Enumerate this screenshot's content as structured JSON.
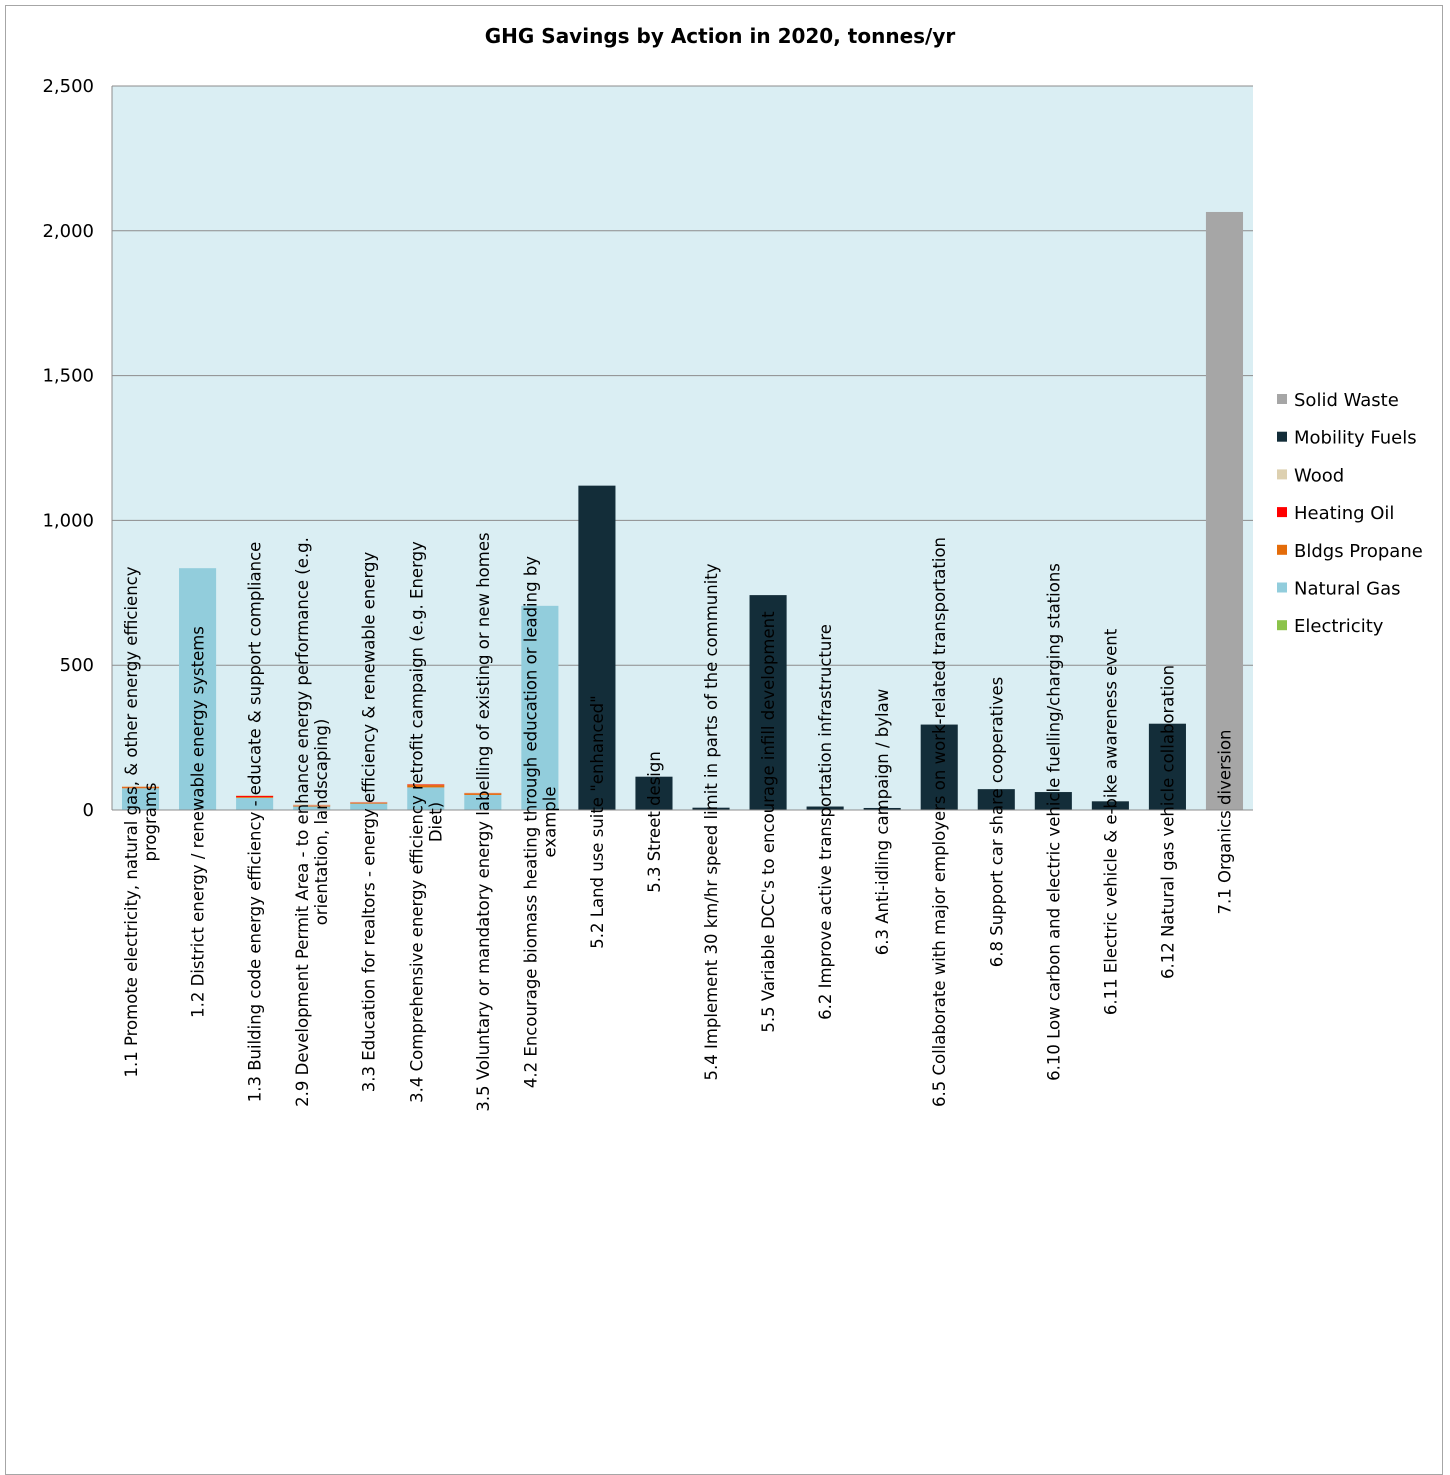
{
  "chart_data": {
    "type": "bar",
    "stacked": true,
    "title": "GHG Savings by Action in 2020, tonnes/yr",
    "xlabel": "",
    "ylabel": "",
    "ylim": [
      0,
      2500
    ],
    "yticks": [
      0,
      500,
      1000,
      1500,
      2000,
      2500
    ],
    "ytick_labels": [
      "0",
      "500",
      "1,000",
      "1,500",
      "2,000",
      "2,500"
    ],
    "grid": true,
    "legend_position": "right",
    "plot_background": "#daeef3",
    "categories": [
      "1.1 Promote electricity, natural gas, & other energy efficiency programs",
      "1.2 District energy / renewable energy systems",
      "1.3 Building code energy efficiency - educate & support compliance",
      "2.9 Development Permit Area - to enhance energy performance (e.g. orientation, landscaping)",
      "3.3 Education for realtors - energy efficiency & renewable energy",
      "3.4 Comprehensive energy efficiency retrofit campaign (e.g. Energy Diet)",
      "3.5 Voluntary or mandatory energy labelling of existing or new homes",
      "4.2 Encourage biomass heating through education or leading by example",
      "5.2 Land use suite \"enhanced\"",
      "5.3 Street design",
      "5.4 Implement 30 km/hr speed limit in parts of the community",
      "5.5 Variable DCC's to encourage infill development",
      "6.2 Improve active transportation infrastructure",
      "6.3 Anti-idling campaign / bylaw",
      "6.5 Collaborate with major employers on work-related transportation",
      "6.8 Support car share cooperatives",
      "6.10 Low carbon and electric vehicle fuelling/charging stations",
      "6.11 Electric vehicle & e-bike awareness event",
      "6.12 Natural gas vehicle collaboration",
      "7.1 Organics diversion"
    ],
    "category_lines": [
      [
        "1.1 Promote electricity, natural gas, & other energy efficiency",
        "programs"
      ],
      [
        "1.2 District energy / renewable energy systems"
      ],
      [
        "1.3 Building code energy efficiency - educate & support compliance"
      ],
      [
        "2.9 Development Permit Area - to enhance energy performance (e.g.",
        "orientation, landscaping)"
      ],
      [
        "3.3 Education for realtors - energy efficiency & renewable energy"
      ],
      [
        "3.4 Comprehensive energy efficiency retrofit campaign (e.g. Energy",
        "Diet)"
      ],
      [
        "3.5 Voluntary or mandatory energy labelling of existing or new homes"
      ],
      [
        "4.2 Encourage biomass heating through education or leading by",
        "example"
      ],
      [
        "5.2 Land use suite \"enhanced\""
      ],
      [
        "5.3 Street design"
      ],
      [
        "5.4 Implement 30 km/hr speed limit in parts of the community"
      ],
      [
        "5.5 Variable DCC's to encourage infill development"
      ],
      [
        "6.2 Improve active transportation infrastructure"
      ],
      [
        "6.3 Anti-idling campaign / bylaw"
      ],
      [
        "6.5 Collaborate with major employers on work-related transportation"
      ],
      [
        "6.8 Support car share cooperatives"
      ],
      [
        "6.10 Low carbon and electric vehicle fuelling/charging stations"
      ],
      [
        "6.11 Electric vehicle & e-bike awareness event"
      ],
      [
        "6.12 Natural gas vehicle collaboration"
      ],
      [
        "7.1 Organics diversion"
      ]
    ],
    "series": [
      {
        "name": "Electricity",
        "color": "#8bc34a",
        "values": [
          0,
          0,
          0,
          0,
          0,
          0,
          0,
          0,
          0,
          0,
          0,
          0,
          0,
          0,
          0,
          0,
          0,
          0,
          0,
          0
        ]
      },
      {
        "name": "Natural Gas",
        "color": "#92cddc",
        "values": [
          75,
          835,
          42,
          12,
          22,
          78,
          52,
          705,
          0,
          0,
          0,
          0,
          0,
          0,
          0,
          0,
          0,
          0,
          0,
          0
        ]
      },
      {
        "name": "Bldgs Propane",
        "color": "#e46c0a",
        "values": [
          4,
          0,
          3,
          3,
          3,
          8,
          5,
          0,
          0,
          0,
          0,
          0,
          0,
          0,
          0,
          0,
          0,
          0,
          0,
          0
        ]
      },
      {
        "name": "Heating Oil",
        "color": "#ff0000",
        "values": [
          1,
          0,
          4,
          1,
          1,
          2,
          1,
          0,
          0,
          0,
          0,
          0,
          0,
          0,
          0,
          0,
          0,
          0,
          0,
          0
        ]
      },
      {
        "name": "Wood",
        "color": "#ddd0b0",
        "values": [
          3,
          0,
          2,
          3,
          2,
          2,
          2,
          0,
          0,
          0,
          0,
          0,
          0,
          0,
          0,
          0,
          0,
          0,
          0,
          0
        ]
      },
      {
        "name": "Mobility Fuels",
        "color": "#132d39",
        "values": [
          0,
          0,
          0,
          0,
          0,
          0,
          0,
          0,
          1120,
          115,
          8,
          742,
          12,
          7,
          295,
          72,
          62,
          30,
          298,
          0
        ]
      },
      {
        "name": "Solid Waste",
        "color": "#a6a6a6",
        "values": [
          0,
          0,
          0,
          0,
          0,
          0,
          0,
          0,
          0,
          0,
          0,
          0,
          0,
          0,
          0,
          0,
          0,
          0,
          0,
          2065
        ]
      }
    ],
    "legend_order": [
      "Solid Waste",
      "Mobility Fuels",
      "Wood",
      "Heating Oil",
      "Bldgs Propane",
      "Natural Gas",
      "Electricity"
    ]
  }
}
